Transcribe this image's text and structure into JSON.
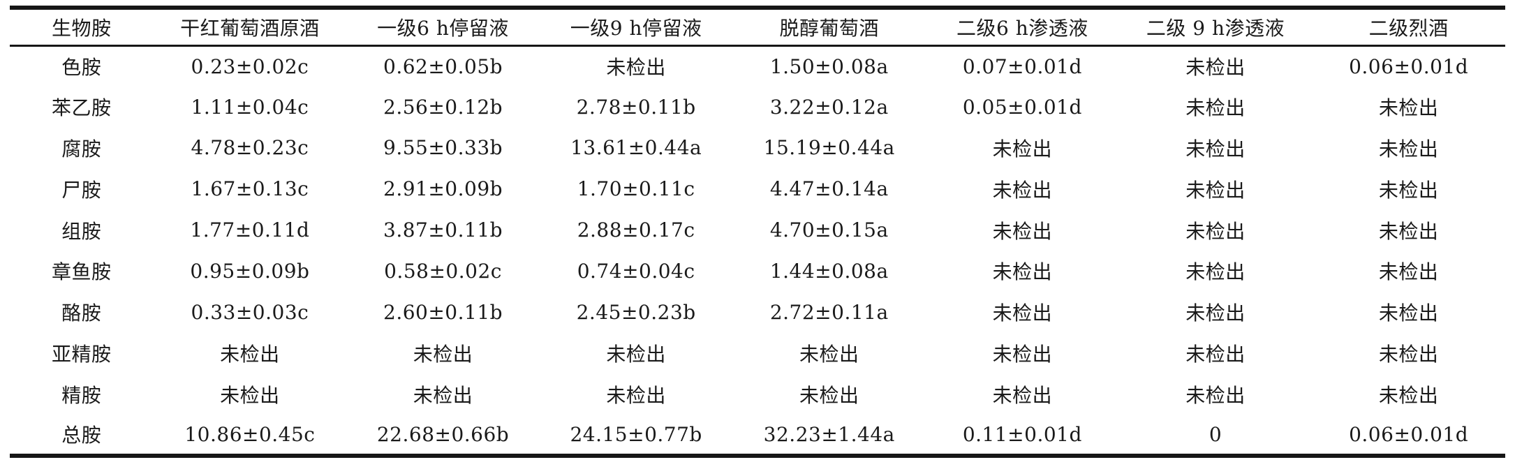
{
  "table": {
    "unit_note": "",
    "columns": [
      "生物胺",
      "干红葡萄酒原酒",
      "一级6 h停留液",
      "一级9 h停留液",
      "脱醇葡萄酒",
      "二级6 h渗透液",
      "二级 9 h渗透液",
      "二级烈酒"
    ],
    "rows": [
      {
        "label": "色胺",
        "values": [
          "0.23±0.02c",
          "0.62±0.05b",
          "未检出",
          "1.50±0.08a",
          "0.07±0.01d",
          "未检出",
          "0.06±0.01d"
        ]
      },
      {
        "label": "苯乙胺",
        "values": [
          "1.11±0.04c",
          "2.56±0.12b",
          "2.78±0.11b",
          "3.22±0.12a",
          "0.05±0.01d",
          "未检出",
          "未检出"
        ]
      },
      {
        "label": "腐胺",
        "values": [
          "4.78±0.23c",
          "9.55±0.33b",
          "13.61±0.44a",
          "15.19±0.44a",
          "未检出",
          "未检出",
          "未检出"
        ]
      },
      {
        "label": "尸胺",
        "values": [
          "1.67±0.13c",
          "2.91±0.09b",
          "1.70±0.11c",
          "4.47±0.14a",
          "未检出",
          "未检出",
          "未检出"
        ]
      },
      {
        "label": "组胺",
        "values": [
          "1.77±0.11d",
          "3.87±0.11b",
          "2.88±0.17c",
          "4.70±0.15a",
          "未检出",
          "未检出",
          "未检出"
        ]
      },
      {
        "label": "章鱼胺",
        "values": [
          "0.95±0.09b",
          "0.58±0.02c",
          "0.74±0.04c",
          "1.44±0.08a",
          "未检出",
          "未检出",
          "未检出"
        ]
      },
      {
        "label": "酪胺",
        "values": [
          "0.33±0.03c",
          "2.60±0.11b",
          "2.45±0.23b",
          "2.72±0.11a",
          "未检出",
          "未检出",
          "未检出"
        ]
      },
      {
        "label": "亚精胺",
        "values": [
          "未检出",
          "未检出",
          "未检出",
          "未检出",
          "未检出",
          "未检出",
          "未检出"
        ]
      },
      {
        "label": "精胺",
        "values": [
          "未检出",
          "未检出",
          "未检出",
          "未检出",
          "未检出",
          "未检出",
          "未检出"
        ]
      },
      {
        "label": "总胺",
        "values": [
          "10.86±0.45c",
          "22.68±0.66b",
          "24.15±0.77b",
          "32.23±1.44a",
          "0.11±0.01d",
          "0",
          "0.06±0.01d"
        ]
      }
    ]
  },
  "chart_data": {
    "type": "table",
    "title": "",
    "categories": [
      "色胺",
      "苯乙胺",
      "腐胺",
      "尸胺",
      "组胺",
      "章鱼胺",
      "酪胺",
      "亚精胺",
      "精胺",
      "总胺"
    ],
    "series": [
      {
        "name": "干红葡萄酒原酒",
        "values": [
          0.23,
          1.11,
          4.78,
          1.67,
          1.77,
          0.95,
          0.33,
          null,
          null,
          10.86
        ]
      },
      {
        "name": "一级6 h停留液",
        "values": [
          0.62,
          2.56,
          9.55,
          2.91,
          3.87,
          0.58,
          2.6,
          null,
          null,
          22.68
        ]
      },
      {
        "name": "一级9 h停留液",
        "values": [
          null,
          2.78,
          13.61,
          1.7,
          2.88,
          0.74,
          2.45,
          null,
          null,
          24.15
        ]
      },
      {
        "name": "脱醇葡萄酒",
        "values": [
          1.5,
          3.22,
          15.19,
          4.47,
          4.7,
          1.44,
          2.72,
          null,
          null,
          32.23
        ]
      },
      {
        "name": "二级6 h渗透液",
        "values": [
          0.07,
          0.05,
          null,
          null,
          null,
          null,
          null,
          null,
          null,
          0.11
        ]
      },
      {
        "name": "二级 9 h渗透液",
        "values": [
          null,
          null,
          null,
          null,
          null,
          null,
          null,
          null,
          null,
          0
        ]
      },
      {
        "name": "二级烈酒",
        "values": [
          0.06,
          null,
          null,
          null,
          null,
          null,
          null,
          null,
          null,
          0.06
        ]
      }
    ],
    "not_detected_label": "未检出"
  },
  "colors": {
    "text": "#1a1a1a",
    "rule": "#161616",
    "background": "#ffffff"
  }
}
